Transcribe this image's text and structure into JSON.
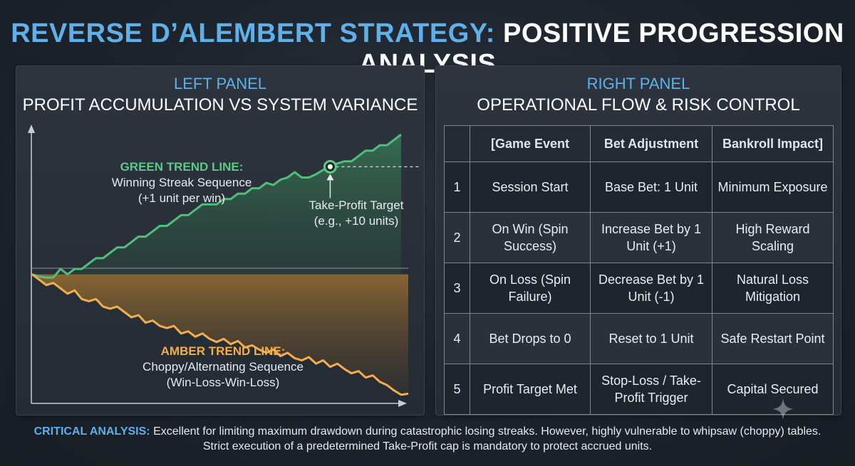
{
  "title": {
    "accent": "REVERSE D’ALEMBERT STRATEGY:",
    "rest": "POSITIVE PROGRESSION ANALYSIS"
  },
  "left_panel": {
    "kicker": "LEFT PANEL",
    "heading": "PROFIT ACCUMULATION VS SYSTEM VARIANCE",
    "green_label": {
      "head": "GREEN TREND LINE:",
      "line1": "Winning Streak Sequence",
      "line2": "(+1 unit per win)"
    },
    "amber_label": {
      "head": "AMBER TREND LINE:",
      "line1": "Choppy/Alternating Sequence",
      "line2": "(Win-Loss-Win-Loss)"
    },
    "target_label": {
      "line1": "Take-Profit Target",
      "line2": "(e.g., +10 units)"
    }
  },
  "chart_data": {
    "type": "line",
    "title": "PROFIT ACCUMULATION VS SYSTEM VARIANCE",
    "xlabel": "",
    "ylabel": "",
    "x": [
      0,
      1,
      2,
      3,
      4,
      5,
      6,
      7,
      8,
      9,
      10,
      11,
      12,
      13,
      14,
      15,
      16,
      17,
      18,
      19,
      20,
      21,
      22,
      23,
      24,
      25,
      26,
      27,
      28,
      29,
      30,
      31,
      32,
      33,
      34,
      35,
      36,
      37,
      38,
      39,
      40,
      41,
      42,
      43,
      44,
      45,
      46,
      47,
      48,
      49,
      50,
      51,
      52,
      53
    ],
    "ylim": [
      -12,
      13
    ],
    "grid": false,
    "annotations": [
      "Take-Profit Target",
      "(e.g., +10 units)"
    ],
    "series": [
      {
        "name": "GREEN TREND LINE",
        "color": "#4fbf7a",
        "values": [
          0,
          -0.2,
          -0.3,
          -0.3,
          0.5,
          0,
          0.5,
          0.5,
          1,
          1.5,
          1.5,
          2,
          2.5,
          2.5,
          3,
          3.5,
          3.5,
          4,
          4.5,
          4.5,
          5,
          5.5,
          5.5,
          6,
          6.5,
          6.5,
          6.5,
          7,
          7,
          7.5,
          7.5,
          8,
          8,
          8.5,
          8.3,
          8.8,
          9,
          9.5,
          9,
          9,
          9.3,
          9.7,
          10,
          10.3,
          10.5,
          10.5,
          11,
          11.5,
          11.5,
          12,
          12,
          12.5,
          13,
          null
        ]
      },
      {
        "name": "AMBER TREND LINE",
        "color": "#f2ae4a",
        "values": [
          0,
          -0.5,
          -1,
          -0.8,
          -1.3,
          -1.8,
          -1.5,
          -2.3,
          -2.5,
          -2.3,
          -3,
          -3.2,
          -3,
          -3.5,
          -4,
          -3.8,
          -4.5,
          -4.3,
          -4.8,
          -5,
          -4.8,
          -5.5,
          -5.3,
          -5.8,
          -5.5,
          -6,
          -6.3,
          -6,
          -6.5,
          -6.2,
          -6.8,
          -6.6,
          -7,
          -7.3,
          -7,
          -7.6,
          -7.3,
          -7.8,
          -8,
          -7.7,
          -8.3,
          -8,
          -8.6,
          -8.3,
          -8.8,
          -9.2,
          -9,
          -9.6,
          -9.4,
          -10,
          -10.3,
          -10.8,
          -11.2,
          -11.1
        ]
      }
    ],
    "target": {
      "x": 42,
      "y": 10
    }
  },
  "right_panel": {
    "kicker": "RIGHT PANEL",
    "heading": "OPERATIONAL FLOW & RISK CONTROL",
    "columns": [
      "",
      "[Game Event",
      "Bet Adjustment",
      "Bankroll Impact]"
    ],
    "rows": [
      {
        "num": "1",
        "event": "Session Start",
        "bet": "Base Bet: 1 Unit",
        "impact": "Minimum Exposure"
      },
      {
        "num": "2",
        "event": "On Win (Spin Success)",
        "bet": "Increase Bet by 1 Unit (+1)",
        "impact": "High Reward Scaling"
      },
      {
        "num": "3",
        "event": "On Loss (Spin Failure)",
        "bet": "Decrease Bet by 1 Unit (-1)",
        "impact": "Natural Loss Mitigation"
      },
      {
        "num": "4",
        "event": "Bet Drops to 0",
        "bet": "Reset to 1 Unit",
        "impact": "Safe Restart Point"
      },
      {
        "num": "5",
        "event": "Profit Target Met",
        "bet": "Stop-Loss / Take-Profit Trigger",
        "impact": "Capital Secured"
      }
    ]
  },
  "analysis": {
    "lead": "CRITICAL ANALYSIS:",
    "text": "Excellent for limiting maximum drawdown during catastrophic losing streaks. However, highly vulnerable to whipsaw (choppy) tables. Strict execution of a predetermined Take-Profit cap is mandatory to protect accrued units."
  }
}
